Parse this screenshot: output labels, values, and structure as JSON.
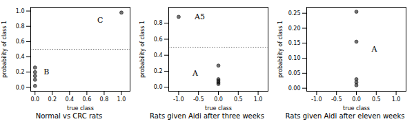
{
  "chart_data": [
    {
      "type": "scatter",
      "title": "Normal vs CRC rats",
      "x_label": "true class",
      "y_label": "probability of class 1",
      "x": [
        0.0,
        0.0,
        0.0,
        0.0,
        0.0,
        1.0
      ],
      "values": [
        0.02,
        0.1,
        0.15,
        0.2,
        0.26,
        0.98
      ],
      "marker": "circle",
      "xlim": [
        -0.05,
        1.1
      ],
      "ylim": [
        -0.05,
        1.05
      ],
      "xticks": [
        {
          "value": 0.0,
          "label": "0.0"
        },
        0.2,
        0.4,
        0.6,
        0.8,
        {
          "value": 1.0,
          "label": "1.0"
        }
      ],
      "yticks": [
        {
          "value": 0.0,
          "label": "0.0"
        },
        0.2,
        0.4,
        0.6,
        0.8,
        {
          "value": 1.0,
          "label": "1.0"
        }
      ],
      "hline": {
        "y": 0.5,
        "line_style": "dotted"
      },
      "annotations": [
        {
          "x": 0.1,
          "y": 0.2,
          "text": "B"
        },
        {
          "x": 0.72,
          "y": 0.88,
          "text": "C"
        }
      ]
    },
    {
      "type": "scatter",
      "title": "Rats given Aidi after three weeks",
      "x_label": "true class",
      "y_label": "probability of class 1",
      "x": [
        -1.0,
        0.0,
        0.0,
        0.0,
        0.0,
        0.0
      ],
      "values": [
        0.88,
        0.27,
        0.04,
        0.06,
        0.08,
        0.1
      ],
      "marker": "circle",
      "xlim": [
        -1.25,
        1.25
      ],
      "ylim": [
        -0.05,
        1.0
      ],
      "xticks": [
        {
          "value": -1.0,
          "label": "-1.0"
        },
        -0.5,
        {
          "value": 0.0,
          "label": "0.0"
        },
        0.5,
        {
          "value": 1.0,
          "label": "1.0"
        }
      ],
      "yticks": [
        {
          "value": 0.0,
          "label": "0.0"
        },
        0.2,
        0.4,
        0.6,
        0.8
      ],
      "hline": {
        "y": 0.5,
        "line_style": "dotted"
      },
      "annotations": [
        {
          "x": -0.65,
          "y": 0.17,
          "text": "A"
        },
        {
          "x": -0.6,
          "y": 0.88,
          "text": "A5"
        }
      ]
    },
    {
      "type": "scatter",
      "title": "Rats given Aidi after eleven weeks",
      "x_label": "true class",
      "y_label": "probability of class 1",
      "x": [
        0.0,
        0.0,
        0.0,
        0.0,
        0.0
      ],
      "values": [
        0.255,
        0.155,
        0.03,
        0.02,
        0.01
      ],
      "marker": "circle",
      "xlim": [
        -1.25,
        1.25
      ],
      "ylim": [
        -0.01,
        0.27
      ],
      "xticks": [
        {
          "value": -1.0,
          "label": "-1.0"
        },
        -0.5,
        {
          "value": 0.0,
          "label": "0.0"
        },
        0.5,
        {
          "value": 1.0,
          "label": "1.0"
        }
      ],
      "yticks": [
        {
          "value": 0.0,
          "label": "0.00"
        },
        0.05,
        {
          "value": 0.1,
          "label": "0.10"
        },
        0.15,
        {
          "value": 0.2,
          "label": "0.20"
        },
        0.25
      ],
      "annotations": [
        {
          "x": 0.38,
          "y": 0.13,
          "text": "A"
        }
      ]
    }
  ]
}
